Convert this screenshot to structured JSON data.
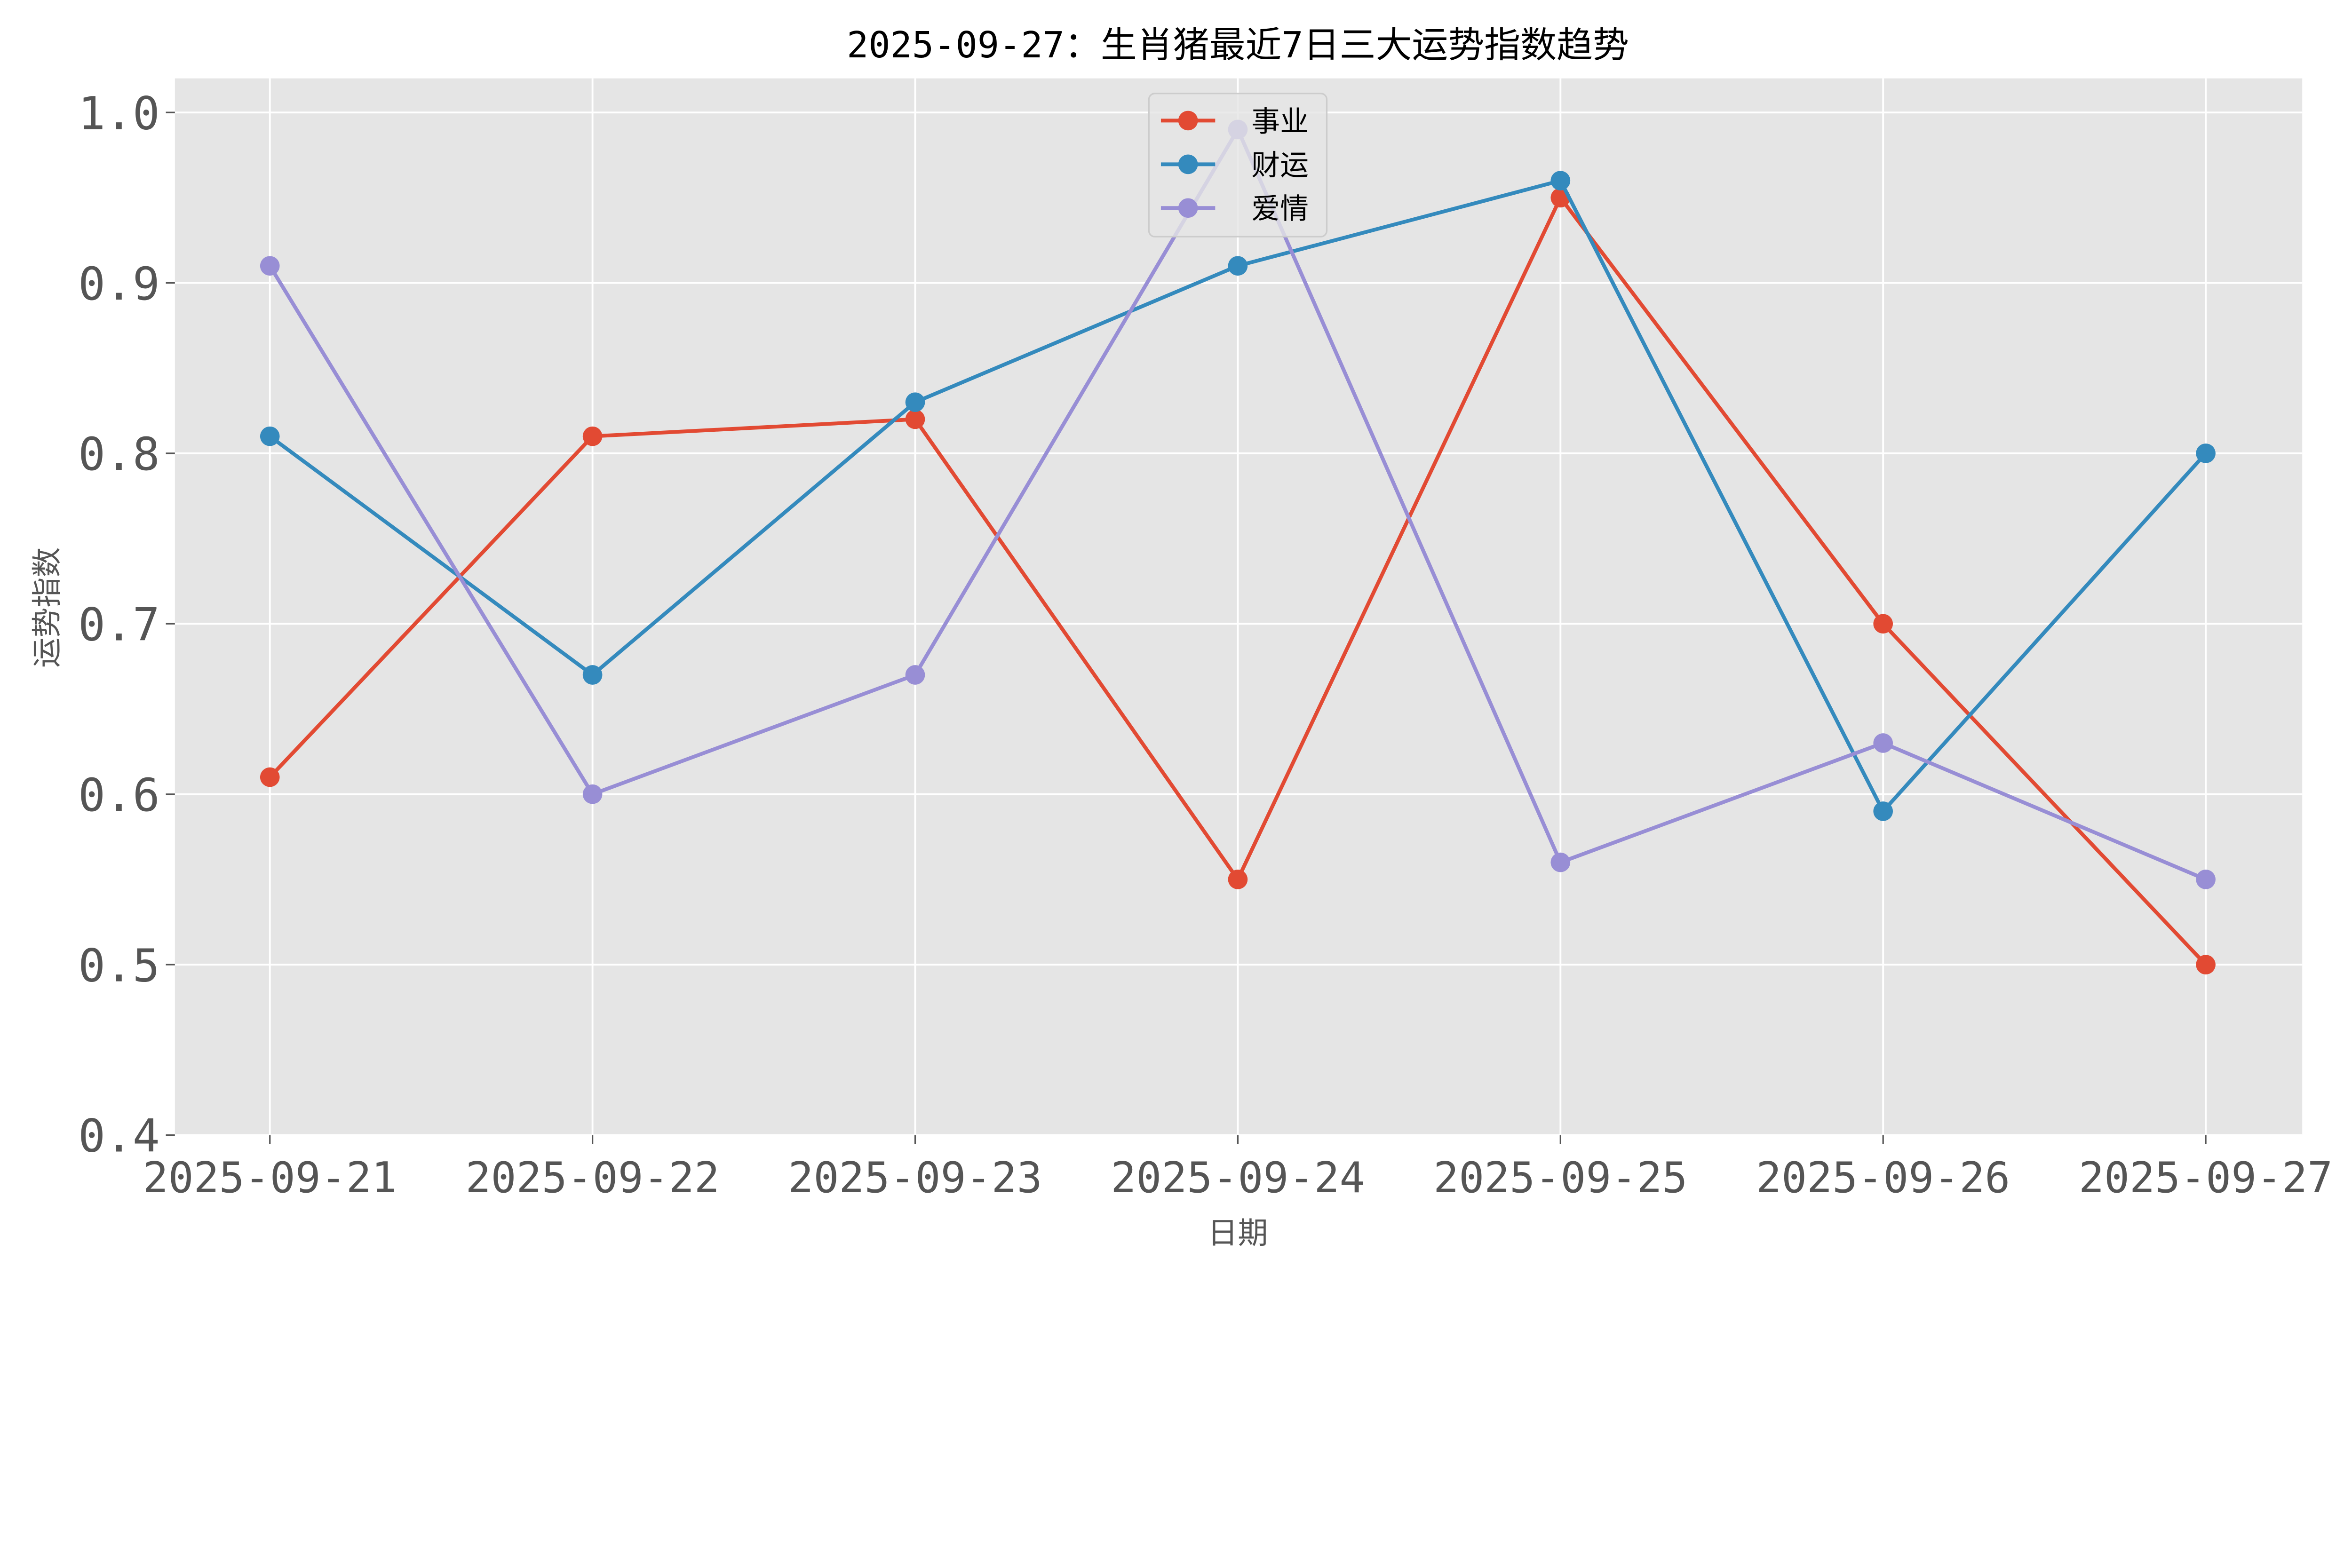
{
  "chart_data": {
    "type": "line",
    "title": "2025-09-27：生肖猪最近7日三大运势指数趋势",
    "xlabel": "日期",
    "ylabel": "运势指数",
    "categories": [
      "2025-09-21",
      "2025-09-22",
      "2025-09-23",
      "2025-09-24",
      "2025-09-25",
      "2025-09-26",
      "2025-09-27"
    ],
    "ylim": [
      0.4,
      1.02
    ],
    "yticks": [
      "0.4",
      "0.5",
      "0.6",
      "0.7",
      "0.8",
      "0.9",
      "1.0"
    ],
    "grid": true,
    "legend_position": "top-center",
    "background_color": "#E5E5E5",
    "series": [
      {
        "name": "事业",
        "color": "#E24A33",
        "values": [
          0.61,
          0.81,
          0.82,
          0.55,
          0.95,
          0.7,
          0.5
        ]
      },
      {
        "name": "财运",
        "color": "#348ABD",
        "values": [
          0.81,
          0.67,
          0.83,
          0.91,
          0.96,
          0.59,
          0.8
        ]
      },
      {
        "name": "爱情",
        "color": "#988ED5",
        "values": [
          0.91,
          0.6,
          0.67,
          0.99,
          0.56,
          0.63,
          0.55
        ]
      }
    ]
  }
}
